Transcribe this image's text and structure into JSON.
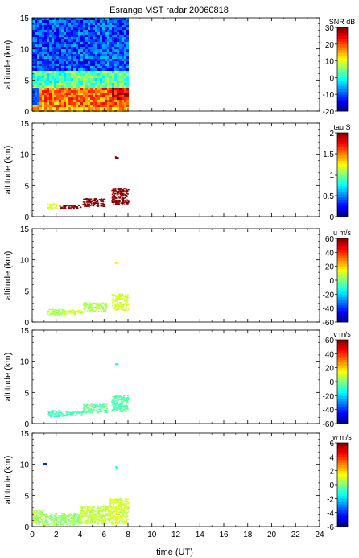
{
  "figure": {
    "title": "Esrange MST radar 20060818",
    "xlabel": "time (UT)",
    "x_ticks": [
      0,
      2,
      4,
      6,
      8,
      10,
      12,
      14,
      16,
      18,
      20,
      22,
      24
    ],
    "xlim": [
      0,
      24
    ]
  },
  "chart_data": [
    {
      "type": "heatmap",
      "title": "Esrange MST radar 20060818",
      "ylabel": "altitude (km)",
      "xlabel": "",
      "xlim": [
        0,
        24
      ],
      "ylim": [
        0,
        15
      ],
      "y_ticks": [
        0,
        5,
        10,
        15
      ],
      "colorbar": {
        "label": "SNR dB",
        "range": [
          -20,
          30
        ],
        "ticks": [
          -20,
          -10,
          0,
          10,
          20,
          30
        ]
      },
      "data_extent": {
        "time": [
          0,
          8
        ],
        "altitude": [
          0,
          15
        ]
      },
      "features": [
        {
          "time": [
            0,
            8
          ],
          "altitude": [
            0,
            1.2
          ],
          "value_db": 15,
          "note": "near-ground echo band"
        },
        {
          "time": [
            0.5,
            8
          ],
          "altitude": [
            1,
            4
          ],
          "value_db": 18,
          "note": "strong boundary-layer echoes"
        },
        {
          "time": [
            6.5,
            8
          ],
          "altitude": [
            2,
            4.5
          ],
          "value_db": 25
        },
        {
          "time": [
            0,
            8
          ],
          "altitude": [
            4,
            6.5
          ],
          "value_db": 3
        },
        {
          "time": [
            0,
            8
          ],
          "altitude": [
            6.5,
            15
          ],
          "value_db": -10,
          "note": "noise floor"
        }
      ]
    },
    {
      "type": "scatter",
      "ylabel": "altitude (km)",
      "xlabel": "",
      "xlim": [
        0,
        24
      ],
      "ylim": [
        0,
        15
      ],
      "y_ticks": [
        0,
        5,
        10,
        15
      ],
      "colorbar": {
        "label": "tau S",
        "range": [
          0,
          2
        ],
        "ticks": [
          0,
          0.5,
          1,
          1.5,
          2
        ]
      },
      "clusters": [
        {
          "time": [
            1.2,
            2.0
          ],
          "altitude": [
            1.2,
            2.2
          ],
          "value": 1.2
        },
        {
          "time": [
            2.2,
            4.0
          ],
          "altitude": [
            1.3,
            1.9
          ],
          "value": 2.0
        },
        {
          "time": [
            4.2,
            6.0
          ],
          "altitude": [
            1.7,
            3.0
          ],
          "value": 2.0
        },
        {
          "time": [
            6.6,
            8.0
          ],
          "altitude": [
            2.0,
            4.6
          ],
          "value": 2.0
        },
        {
          "time": [
            6.9,
            7.1
          ],
          "altitude": [
            9.4,
            9.7
          ],
          "value": 2.0
        }
      ]
    },
    {
      "type": "scatter",
      "ylabel": "altitude (km)",
      "xlabel": "",
      "xlim": [
        0,
        24
      ],
      "ylim": [
        0,
        15
      ],
      "y_ticks": [
        0,
        5,
        10,
        15
      ],
      "colorbar": {
        "label": "u m/s",
        "range": [
          -60,
          60
        ],
        "ticks": [
          -60,
          -40,
          -20,
          0,
          20,
          40,
          60
        ]
      },
      "clusters": [
        {
          "time": [
            1.2,
            2.5
          ],
          "altitude": [
            1.2,
            2.2
          ],
          "value": 5
        },
        {
          "time": [
            2.5,
            4.2
          ],
          "altitude": [
            1.3,
            2.0
          ],
          "value": 8
        },
        {
          "time": [
            4.2,
            6.2
          ],
          "altitude": [
            1.8,
            3.2
          ],
          "value": 6
        },
        {
          "time": [
            6.6,
            8.0
          ],
          "altitude": [
            2.0,
            4.6
          ],
          "value": 10
        },
        {
          "time": [
            6.9,
            7.1
          ],
          "altitude": [
            9.4,
            9.7
          ],
          "value": 15
        }
      ]
    },
    {
      "type": "scatter",
      "ylabel": "altitude (km)",
      "xlabel": "",
      "xlim": [
        0,
        24
      ],
      "ylim": [
        0,
        15
      ],
      "y_ticks": [
        0,
        5,
        10,
        15
      ],
      "colorbar": {
        "label": "v m/s",
        "range": [
          -60,
          60
        ],
        "ticks": [
          -60,
          -40,
          -20,
          0,
          20,
          40,
          60
        ]
      },
      "clusters": [
        {
          "time": [
            1.2,
            2.5
          ],
          "altitude": [
            1.2,
            2.2
          ],
          "value": -8
        },
        {
          "time": [
            2.5,
            4.2
          ],
          "altitude": [
            1.3,
            2.0
          ],
          "value": -6
        },
        {
          "time": [
            4.2,
            6.2
          ],
          "altitude": [
            1.8,
            3.2
          ],
          "value": -4
        },
        {
          "time": [
            6.6,
            8.0
          ],
          "altitude": [
            2.0,
            4.6
          ],
          "value": -5
        },
        {
          "time": [
            6.9,
            7.1
          ],
          "altitude": [
            9.4,
            9.7
          ],
          "value": -10
        }
      ]
    },
    {
      "type": "scatter",
      "ylabel": "altitude (km)",
      "xlabel": "time (UT)",
      "xlim": [
        0,
        24
      ],
      "ylim": [
        0,
        15
      ],
      "y_ticks": [
        0,
        5,
        10,
        15
      ],
      "colorbar": {
        "label": "w m/s",
        "range": [
          -6,
          6
        ],
        "ticks": [
          -6,
          -4,
          -2,
          0,
          2,
          4,
          6
        ]
      },
      "clusters": [
        {
          "time": [
            0.0,
            1.0
          ],
          "altitude": [
            0.3,
            2.8
          ],
          "value": 0.5
        },
        {
          "time": [
            1.0,
            4.0
          ],
          "altitude": [
            0.3,
            2.2
          ],
          "value": 0.3
        },
        {
          "time": [
            4.0,
            6.4
          ],
          "altitude": [
            0.5,
            3.4
          ],
          "value": 0.8
        },
        {
          "time": [
            6.4,
            8.0
          ],
          "altitude": [
            0.5,
            4.6
          ],
          "value": 1.0
        },
        {
          "time": [
            0.9,
            1.1
          ],
          "altitude": [
            10.0,
            10.3
          ],
          "value": -4.0
        },
        {
          "time": [
            6.9,
            7.1
          ],
          "altitude": [
            9.4,
            9.7
          ],
          "value": -1.0
        }
      ]
    }
  ]
}
